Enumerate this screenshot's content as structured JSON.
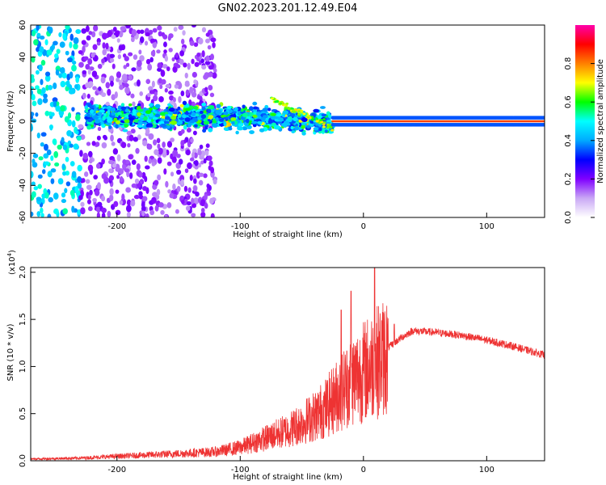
{
  "title": "GN02.2023.201.12.49.E04",
  "chart_data": [
    {
      "type": "heatmap",
      "xlabel": "Height of straight line (km)",
      "ylabel": "Frequency (Hz)",
      "xlim": [
        -270,
        147
      ],
      "ylim": [
        -60,
        60
      ],
      "x_ticks": [
        {
          "value": -200,
          "label": "-200"
        },
        {
          "value": -100,
          "label": "-100"
        },
        {
          "value": 0,
          "label": "0"
        },
        {
          "value": 100,
          "label": "100"
        }
      ],
      "y_ticks": [
        {
          "value": -60,
          "label": "-60"
        },
        {
          "value": -40,
          "label": "-40"
        },
        {
          "value": -20,
          "label": "-20"
        },
        {
          "value": 0,
          "label": "0"
        },
        {
          "value": 20,
          "label": "20"
        },
        {
          "value": 40,
          "label": "40"
        },
        {
          "value": 60,
          "label": "60"
        }
      ],
      "colorbar": {
        "label": "Normalized spectral amplitude",
        "range": [
          0,
          1
        ],
        "ticks": [
          {
            "value": 0.0,
            "label": "0.0"
          },
          {
            "value": 0.2,
            "label": "0.2"
          },
          {
            "value": 0.4,
            "label": "0.4"
          },
          {
            "value": 0.6,
            "label": "0.6"
          },
          {
            "value": 0.8,
            "label": "0.8"
          }
        ],
        "colors": [
          "#ffffff",
          "#c9a8f5",
          "#8000ff",
          "#0000ff",
          "#00aaff",
          "#00ffff",
          "#00ff00",
          "#ffff00",
          "#ff8000",
          "#ff0000",
          "#ff00aa"
        ]
      },
      "features": {
        "dominant_ridge": {
          "x_range": [
            -25,
            147
          ],
          "frequency": 0,
          "amplitude": 0.85
        },
        "scatter_band": {
          "x_range": [
            -225,
            -25
          ],
          "frequency_range": [
            -10,
            12
          ]
        },
        "high_freq_scatter": {
          "x_range": [
            -270,
            -120
          ],
          "frequency_range": [
            -60,
            60
          ]
        }
      }
    },
    {
      "type": "line",
      "xlabel": "Height of straight line (km)",
      "ylabel": "SNR (10 * v/v)",
      "y_scale_label": "(x10",
      "y_scale_exp": "4",
      "xlim": [
        -270,
        147
      ],
      "ylim": [
        0,
        2.05
      ],
      "x_ticks": [
        {
          "value": -200,
          "label": "-200"
        },
        {
          "value": -100,
          "label": "-100"
        },
        {
          "value": 0,
          "label": "0"
        },
        {
          "value": 100,
          "label": "100"
        }
      ],
      "y_ticks": [
        {
          "value": 0.0,
          "label": "0.0"
        },
        {
          "value": 0.5,
          "label": "0.5"
        },
        {
          "value": 1.0,
          "label": "1.0"
        },
        {
          "value": 1.5,
          "label": "1.5"
        },
        {
          "value": 2.0,
          "label": "2.0"
        }
      ],
      "line_color": "#ee3333",
      "envelope": {
        "x": [
          -270,
          -230,
          -200,
          -150,
          -120,
          -100,
          -80,
          -60,
          -40,
          -30,
          -20,
          -10,
          0,
          10,
          20,
          30,
          40,
          60,
          80,
          100,
          120,
          147
        ],
        "y": [
          0.02,
          0.03,
          0.05,
          0.08,
          0.1,
          0.15,
          0.25,
          0.35,
          0.5,
          0.6,
          0.75,
          0.9,
          1.0,
          1.1,
          1.2,
          1.3,
          1.38,
          1.36,
          1.33,
          1.28,
          1.22,
          1.12
        ]
      },
      "spikes": [
        {
          "x": -10,
          "y": 1.8
        },
        {
          "x": 9,
          "y": 2.05
        },
        {
          "x": -18,
          "y": 1.6
        },
        {
          "x": 25,
          "y": 1.45
        }
      ]
    }
  ]
}
